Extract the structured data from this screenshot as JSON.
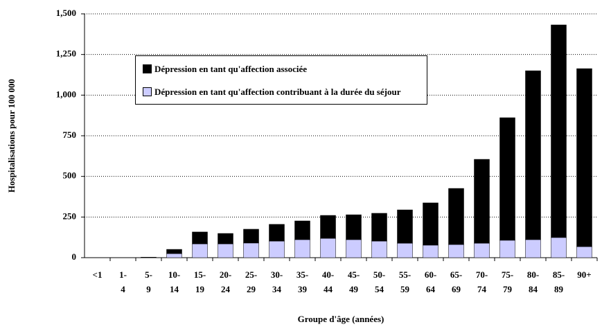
{
  "chart_data": {
    "type": "stacked_bar",
    "x_label": "Groupe d'âge (années)",
    "y_label": "Hospitalisations pour 100 000",
    "categories": [
      "<1",
      "1-4",
      "5-9",
      "10-14",
      "15-19",
      "20-24",
      "25-29",
      "30-34",
      "35-39",
      "40-44",
      "45-49",
      "50-54",
      "55-59",
      "60-64",
      "65-69",
      "70-74",
      "75-79",
      "80-84",
      "85-89",
      "90+"
    ],
    "series": [
      {
        "name": "Dépression en tant qu'affection associée",
        "color": "#000000",
        "values": [
          0,
          0,
          2,
          26,
          73,
          64,
          85,
          103,
          115,
          141,
          153,
          171,
          205,
          260,
          345,
          516,
          754,
          1039,
          1308,
          1095
        ]
      },
      {
        "name": "Dépression en tant qu'affection contribuant à la durée du séjour",
        "color": "#ccccff",
        "values": [
          0,
          0,
          1,
          25,
          85,
          85,
          90,
          102,
          111,
          119,
          111,
          102,
          89,
          77,
          81,
          89,
          107,
          111,
          124,
          68
        ]
      }
    ],
    "ylim": [
      0,
      1500
    ],
    "yticks": [
      0,
      250,
      500,
      750,
      {
        "value": 1000,
        "label": "1,000"
      },
      {
        "value": 1250,
        "label": "1,250"
      },
      {
        "value": 1500,
        "label": "1,500"
      }
    ],
    "grid": true
  }
}
